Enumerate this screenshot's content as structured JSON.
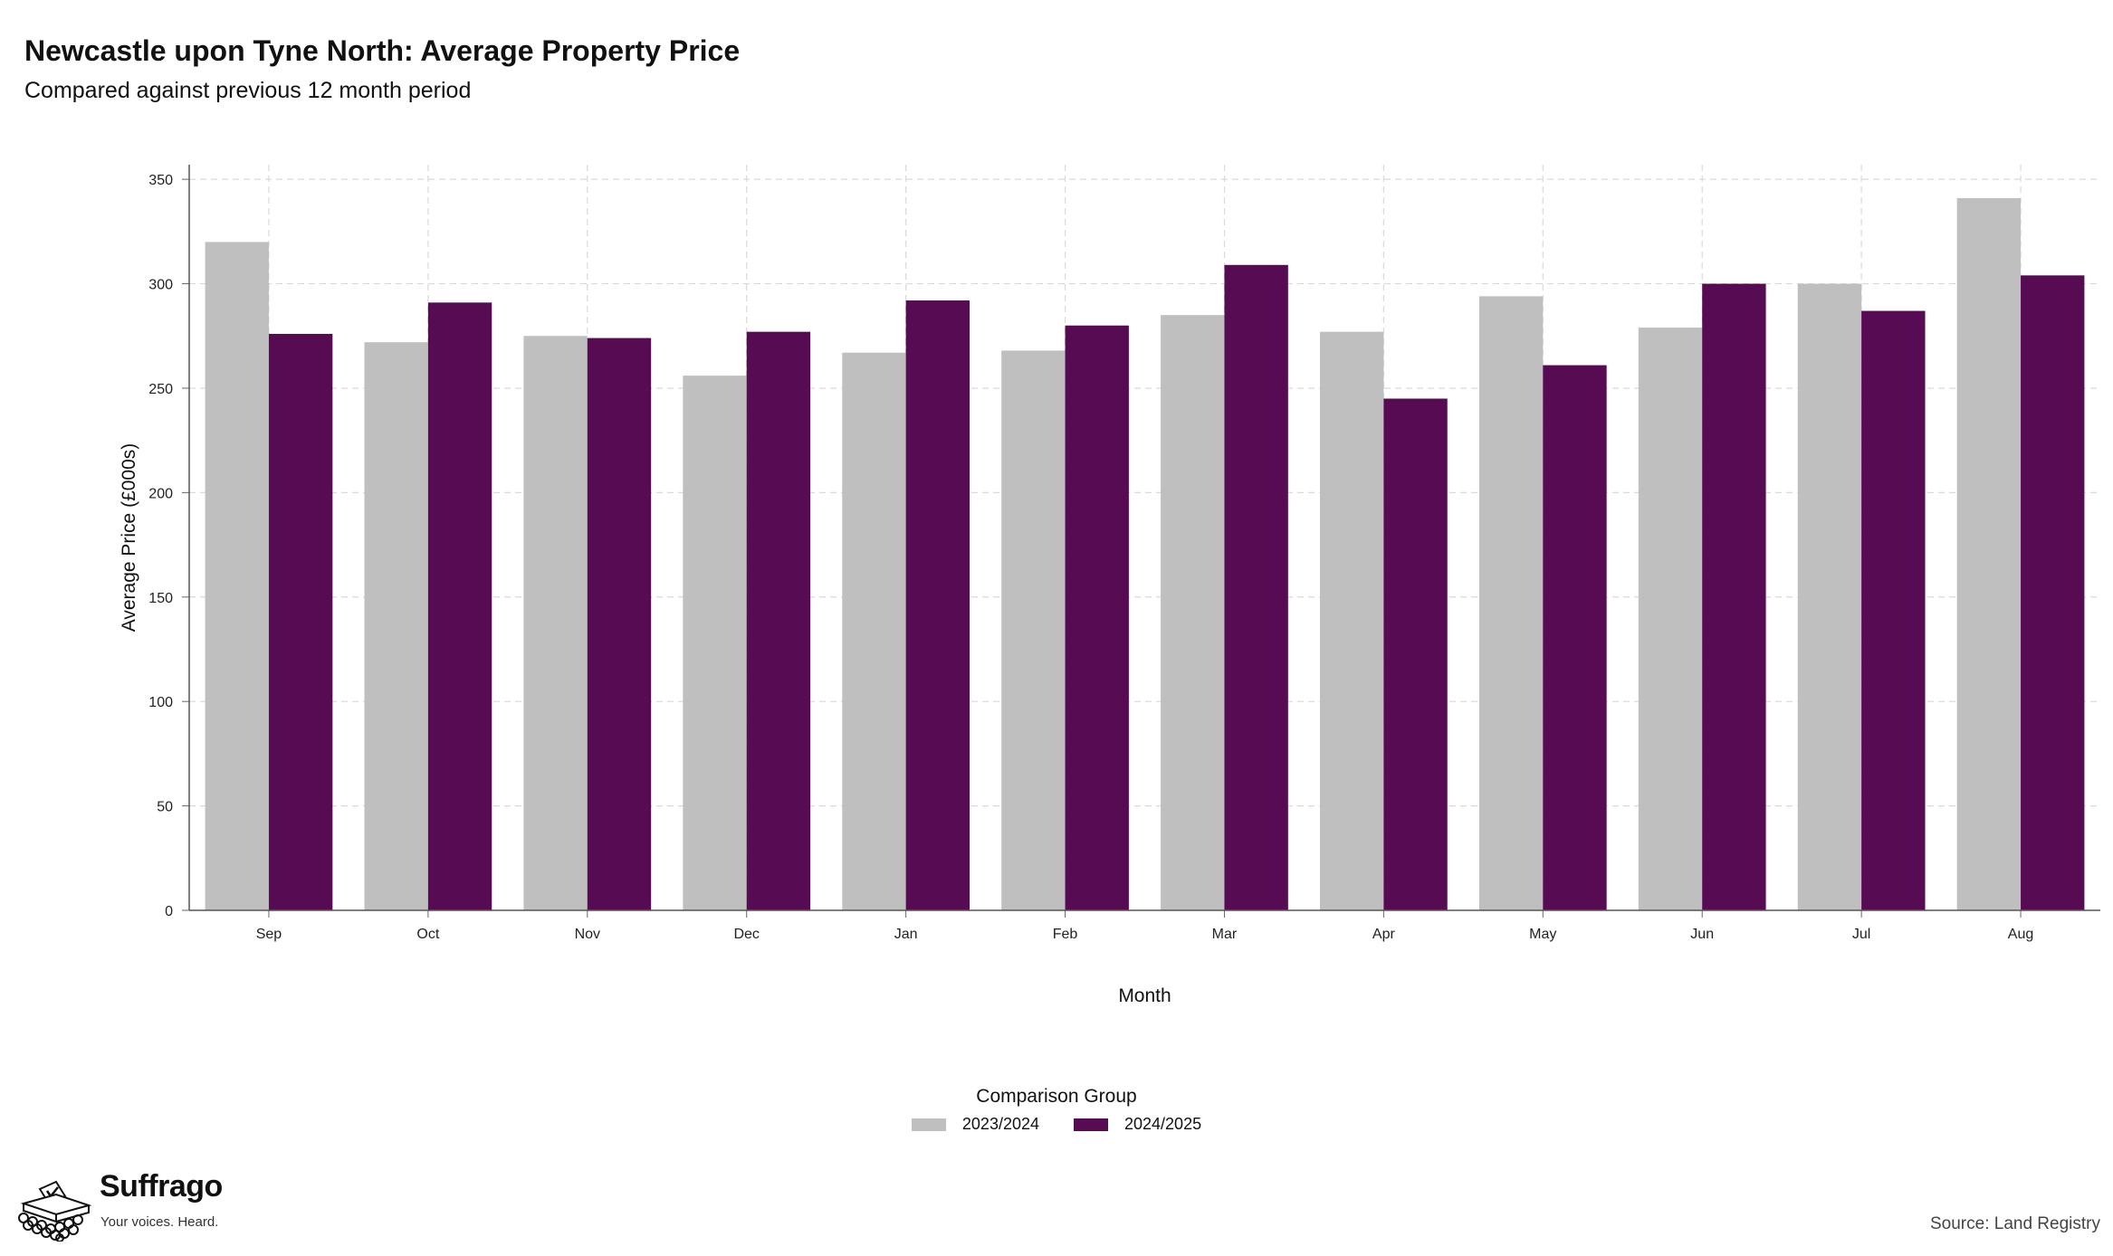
{
  "title": "Newcastle upon Tyne North: Average Property Price",
  "subtitle": "Compared against previous 12 month period",
  "chart_data": {
    "type": "bar",
    "categories": [
      "Sep",
      "Oct",
      "Nov",
      "Dec",
      "Jan",
      "Feb",
      "Mar",
      "Apr",
      "May",
      "Jun",
      "Jul",
      "Aug"
    ],
    "series": [
      {
        "name": "2023/2024",
        "color": "#bfbfbf",
        "values": [
          320,
          272,
          275,
          256,
          267,
          268,
          285,
          277,
          294,
          279,
          300,
          341
        ]
      },
      {
        "name": "2024/2025",
        "color": "#570b52",
        "values": [
          276,
          291,
          274,
          277,
          292,
          280,
          309,
          245,
          261,
          300,
          287,
          304
        ]
      }
    ],
    "xlabel": "Month",
    "ylabel": "Average Price (£000s)",
    "ylim": [
      0,
      357
    ],
    "yticks": [
      0,
      50,
      100,
      150,
      200,
      250,
      300,
      350
    ],
    "grid": true,
    "legend_title": "Comparison Group",
    "legend_position": "bottom"
  },
  "brand": {
    "name": "Suffrago",
    "tagline": "Your voices. Heard."
  },
  "source": "Source: Land Registry"
}
